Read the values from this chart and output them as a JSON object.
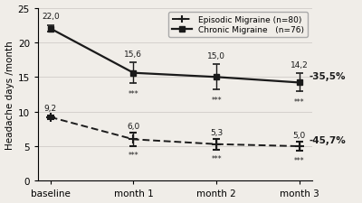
{
  "x_labels": [
    "baseline",
    "month 1",
    "month 2",
    "month 3"
  ],
  "chronic_values": [
    22.0,
    15.6,
    15.0,
    14.2
  ],
  "chronic_errors": [
    0.5,
    1.5,
    1.8,
    1.3
  ],
  "episodic_values": [
    9.2,
    6.0,
    5.3,
    5.0
  ],
  "episodic_errors": [
    0.3,
    1.0,
    0.8,
    0.7
  ],
  "chronic_label": "Chronic Migraine   (n=76)",
  "episodic_label": "Episodic Migraine (n=80)",
  "ylabel": "Headache days /month",
  "ylim": [
    0,
    25
  ],
  "yticks": [
    0,
    5,
    10,
    15,
    20,
    25
  ],
  "chronic_pct": "-35,5%",
  "episodic_pct": "-45,7%",
  "chronic_color": "#1a1a1a",
  "episodic_color": "#1a1a1a",
  "background_color": "#f0ede8",
  "pct_color": "#1a1a1a",
  "asterisks": "***"
}
